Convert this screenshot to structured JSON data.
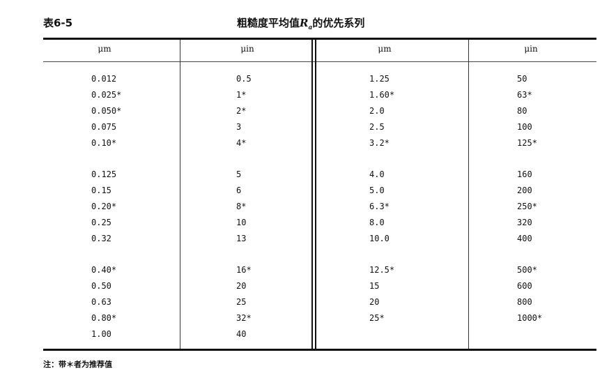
{
  "table_number": "表6-5",
  "title_prefix": "粗糙度平均值",
  "title_symbol": "Ra",
  "title_suffix": "的优先系列",
  "headers": [
    "μm",
    "μin",
    "μm",
    "μin"
  ],
  "groups": [
    [
      [
        "0.012",
        "0.5",
        "1.25",
        "50"
      ],
      [
        "0.025*",
        "1*",
        "1.60*",
        "63*"
      ],
      [
        "0.050*",
        "2*",
        "2.0",
        "80"
      ],
      [
        "0.075",
        "3",
        "2.5",
        "100"
      ],
      [
        "0.10*",
        "4*",
        "3.2*",
        "125*"
      ]
    ],
    [
      [
        "0.125",
        "5",
        "4.0",
        "160"
      ],
      [
        "0.15",
        "6",
        "5.0",
        "200"
      ],
      [
        "0.20*",
        "8*",
        "6.3*",
        "250*"
      ],
      [
        "0.25",
        "10",
        "8.0",
        "320"
      ],
      [
        "0.32",
        "13",
        "10.0",
        "400"
      ]
    ],
    [
      [
        "0.40*",
        "16*",
        "12.5*",
        "500*"
      ],
      [
        "0.50",
        "20",
        "15",
        "600"
      ],
      [
        "0.63",
        "25",
        "20",
        "800"
      ],
      [
        "0.80*",
        "32*",
        "25*",
        "1000*"
      ],
      [
        "1.00",
        "40",
        "",
        ""
      ]
    ]
  ],
  "note": "注：带＊者为推荐值"
}
